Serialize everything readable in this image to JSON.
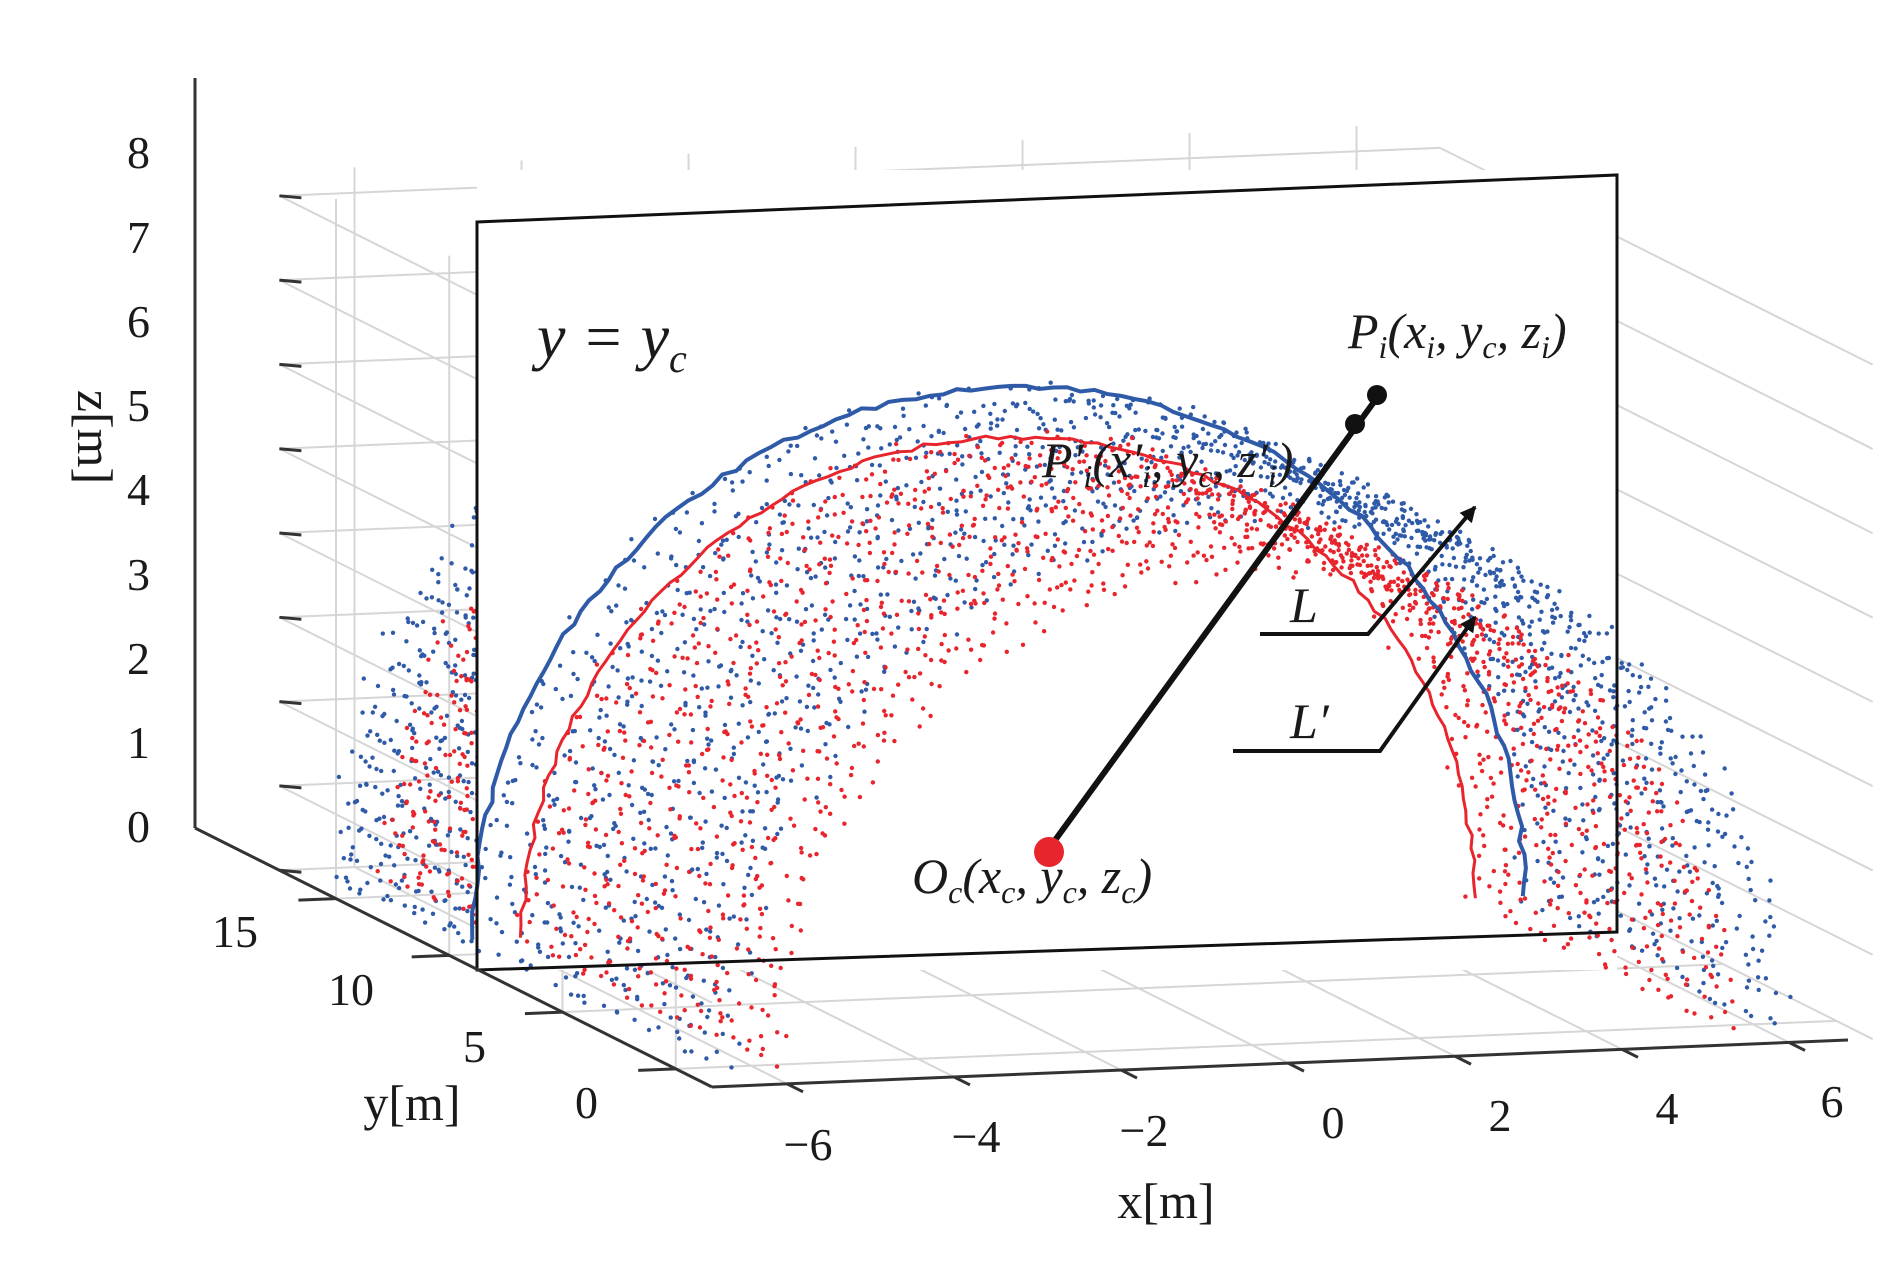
{
  "chart_data": {
    "type": "scatter",
    "projection": "3d",
    "xlabel": "x[m]",
    "ylabel": "y[m]",
    "zlabel": "z[m]",
    "xlim": [
      -7,
      7
    ],
    "ylim": [
      -2,
      18
    ],
    "zlim": [
      0,
      8.5
    ],
    "x_ticks": [
      "−6",
      "−4",
      "−2",
      "0",
      "2",
      "4",
      "6"
    ],
    "y_ticks": [
      "0",
      "5",
      "10",
      "15"
    ],
    "z_ticks": [
      "0",
      "1",
      "2",
      "3",
      "4",
      "5",
      "6",
      "7",
      "8"
    ],
    "grid": true,
    "colors": {
      "outer": "#2f5aa8",
      "inner": "#e8242c",
      "line": "#111111"
    },
    "series": [
      {
        "color": "#2f5aa8",
        "shape": "semicircular arch point cloud",
        "center_x": 0,
        "center_z": 0,
        "radius": 6.3,
        "y_range": [
          0,
          17
        ]
      },
      {
        "color": "#e8242c",
        "shape": "semicircular arch point cloud",
        "center_x": 0,
        "center_z": 0,
        "radius": 5.7,
        "y_range": [
          0,
          17
        ]
      }
    ],
    "section_plane": {
      "label": "y = y",
      "label_sub": "c"
    },
    "annotations": {
      "pi": {
        "letter": "P",
        "sub": "i",
        "text": "(x",
        "sub2": "i",
        "text2": ", y",
        "sub3": "c",
        "text3": ", z",
        "sub4": "i",
        "text4": ")"
      },
      "pi_prime": {
        "letter": "P",
        "prime": "′",
        "sub": "i",
        "text": "(x′",
        "sub2": "i",
        "text2": ", y",
        "sub3": "c",
        "text3": ", z′",
        "sub4": "i",
        "text4": ")"
      },
      "oc": {
        "letter": "O",
        "sub": "c",
        "text": "(x",
        "sub2": "c",
        "text2": ", y",
        "sub3": "c",
        "text3": ", z",
        "sub4": "c",
        "text4": ")"
      },
      "L": "L",
      "L_prime": "L′"
    }
  }
}
